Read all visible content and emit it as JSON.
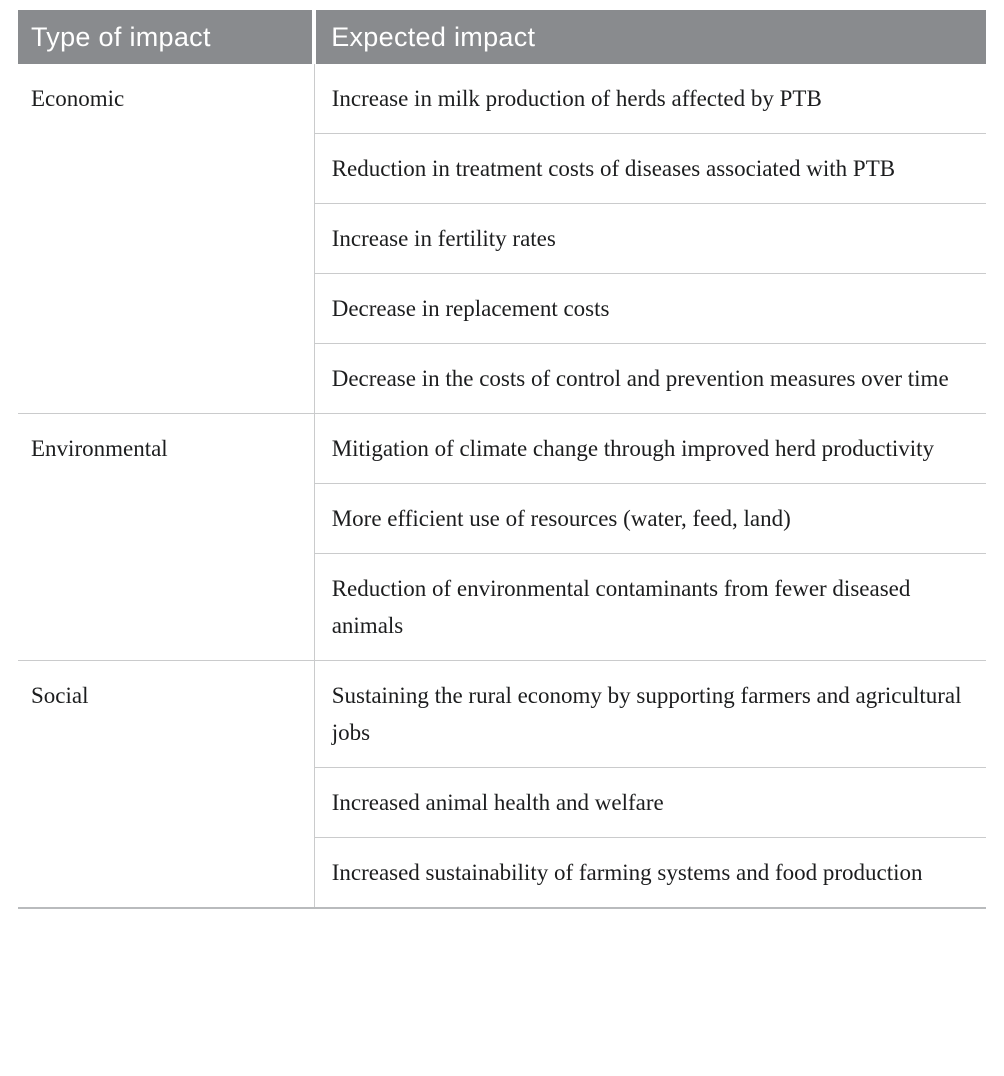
{
  "table": {
    "columns": [
      "Type of impact",
      "Expected impact"
    ],
    "groups": [
      {
        "type": "Economic",
        "impacts": [
          "Increase in milk production of herds affected by PTB",
          "Reduction in treatment costs of diseases associated with PTB",
          "Increase in fertility rates",
          "Decrease in replacement costs",
          "Decrease in the costs of control and prevention measures over time"
        ]
      },
      {
        "type": "Environmental",
        "impacts": [
          "Mitigation of climate change through improved herd productivity",
          "More efficient use of resources (water, feed, land)",
          "Reduction of environmental contaminants from fewer diseased animals"
        ]
      },
      {
        "type": "Social",
        "impacts": [
          "Sustaining the rural economy by supporting farmers and agricultural jobs",
          "Increased animal health and welfare",
          "Increased sustainability of farming systems and food production"
        ]
      }
    ],
    "colors": {
      "header_bg": "#898b8e",
      "header_text": "#ffffff",
      "body_text": "#1c1d1e",
      "divider": "#cacbcc",
      "bottom_border": "#b9bbbd",
      "page_bg": "#ffffff"
    }
  }
}
